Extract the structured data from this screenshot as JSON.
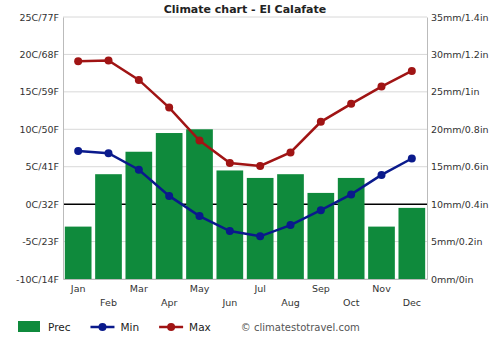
{
  "chart_data": {
    "type": "bar",
    "title": "Climate chart - El Calafate",
    "categories": [
      "Jan",
      "Feb",
      "Mar",
      "Apr",
      "May",
      "Jun",
      "Jul",
      "Aug",
      "Sep",
      "Oct",
      "Nov",
      "Dec"
    ],
    "series": [
      {
        "name": "Prec",
        "type": "bar",
        "axis": "y2",
        "color": "#0f8a3c",
        "values": [
          7,
          14,
          17,
          19.5,
          20,
          14.5,
          13.5,
          14,
          11.5,
          13.5,
          7,
          9.5
        ]
      },
      {
        "name": "Min",
        "type": "line",
        "marker": "circle",
        "color": "#0a1a8c",
        "values": [
          7.1,
          6.8,
          4.6,
          1.1,
          -1.6,
          -3.6,
          -4.3,
          -2.8,
          -0.8,
          1.3,
          3.9,
          6.1
        ]
      },
      {
        "name": "Max",
        "type": "line",
        "marker": "circle",
        "color": "#a01414",
        "values": [
          19.1,
          19.2,
          16.6,
          12.9,
          8.5,
          5.5,
          5.1,
          6.9,
          11,
          13.4,
          15.7,
          17.8
        ]
      }
    ],
    "ylim": [
      -10,
      25
    ],
    "yticks": [
      {
        "value": -10,
        "label": "-10C/14F"
      },
      {
        "value": -5,
        "label": "-5C/23F"
      },
      {
        "value": 0,
        "label": "0C/32F"
      },
      {
        "value": 5,
        "label": "5C/41F"
      },
      {
        "value": 10,
        "label": "10C/50F"
      },
      {
        "value": 15,
        "label": "15C/59F"
      },
      {
        "value": 20,
        "label": "20C/68F"
      },
      {
        "value": 25,
        "label": "25C/77F"
      }
    ],
    "y2lim": [
      0,
      35
    ],
    "y2ticks": [
      {
        "value": 0,
        "label": "0mm/0in"
      },
      {
        "value": 5,
        "label": "5mm/0.2in"
      },
      {
        "value": 10,
        "label": "10mm/0.4in"
      },
      {
        "value": 15,
        "label": "15mm/0.6in"
      },
      {
        "value": 20,
        "label": "20mm/0.8in"
      },
      {
        "value": 25,
        "label": "25mm/1in"
      },
      {
        "value": 30,
        "label": "30mm/1.2in"
      },
      {
        "value": 35,
        "label": "35mm/1.4in"
      }
    ],
    "grid": true,
    "legend": "bottom",
    "annotations": [
      "© climatestotravel.com"
    ]
  }
}
